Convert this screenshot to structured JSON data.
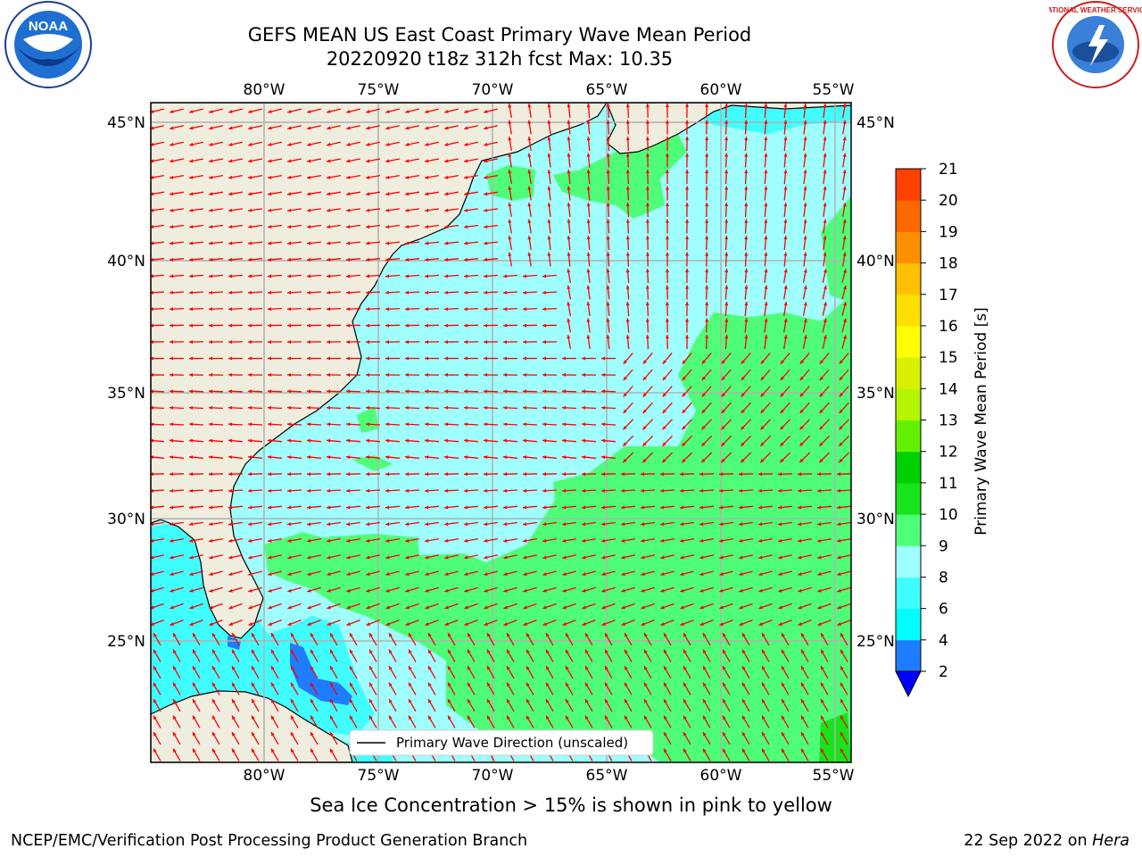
{
  "header": {
    "title_line1": "GEFS MEAN US East Coast Primary Wave Mean Period",
    "title_line2": "20220920 t18z 312h fcst   Max: 10.35"
  },
  "logos": {
    "left": {
      "name": "noaa-logo",
      "text": "NOAA"
    },
    "right": {
      "name": "nws-logo",
      "text": "NATIONAL WEATHER SERVICE"
    }
  },
  "map": {
    "lon_labels": [
      "80°W",
      "75°W",
      "70°W",
      "65°W",
      "60°W",
      "55°W"
    ],
    "lat_labels": [
      "45°N",
      "40°N",
      "35°N",
      "30°N",
      "25°N"
    ],
    "legend_label": "Primary Wave Direction (unscaled)",
    "colors": {
      "land": "#efedde",
      "ocean_light": "#9ffefe",
      "ocean_cyan": "#41fefe",
      "green": "#4ffe78",
      "blue": "#1e7cfe",
      "arrow": "#ff0000"
    }
  },
  "colorbar": {
    "label": "Primary Wave Mean Period [s]",
    "ticks": [
      "2",
      "4",
      "6",
      "8",
      "9",
      "10",
      "11",
      "12",
      "13",
      "14",
      "15",
      "16",
      "17",
      "18",
      "19",
      "20",
      "21"
    ],
    "colors": [
      "#0000fe",
      "#1e7cfe",
      "#00fefe",
      "#41fefe",
      "#9ffefe",
      "#4ffe78",
      "#18e31b",
      "#00d000",
      "#62f000",
      "#b4f500",
      "#d8f000",
      "#fefe00",
      "#fee000",
      "#fec000",
      "#fe9000",
      "#fe6800",
      "#fe4000",
      "#fe0000"
    ]
  },
  "footer": {
    "note": "Sea Ice Concentration > 15% is shown in pink to yellow",
    "left": "NCEP/EMC/Verification Post Processing Product Generation Branch",
    "right_date": "22 Sep 2022 on",
    "right_host": "Hera"
  }
}
